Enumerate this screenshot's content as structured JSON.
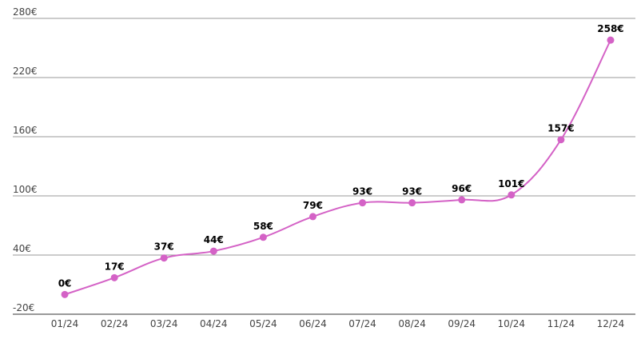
{
  "chart_data": {
    "type": "line",
    "categories": [
      "01/24",
      "02/24",
      "03/24",
      "04/24",
      "05/24",
      "06/24",
      "07/24",
      "08/24",
      "09/24",
      "10/24",
      "11/24",
      "12/24"
    ],
    "series": [
      {
        "color": "#d462c6",
        "values": [
          0,
          17,
          37,
          44,
          58,
          79,
          93,
          93,
          96,
          101,
          157,
          258
        ],
        "value_labels": [
          "0€",
          "17€",
          "37€",
          "44€",
          "58€",
          "79€",
          "93€",
          "93€",
          "96€",
          "101€",
          "157€",
          "258€"
        ]
      }
    ],
    "ylim": [
      -20,
      280
    ],
    "yticks": [
      {
        "value": -20,
        "label": "-20€"
      },
      {
        "value": 40,
        "label": "40€"
      },
      {
        "value": 100,
        "label": "100€"
      },
      {
        "value": 160,
        "label": "160€"
      },
      {
        "value": 220,
        "label": "220€"
      },
      {
        "value": 280,
        "label": "280€"
      }
    ],
    "grid": true
  }
}
